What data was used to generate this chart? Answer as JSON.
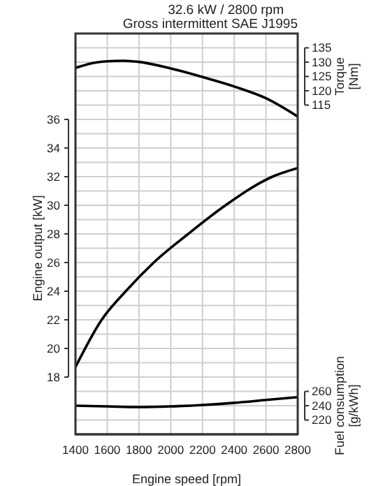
{
  "chart_data": {
    "type": "line",
    "title": "32.6 kW / 2800 rpm",
    "subtitle": "Gross intermittent SAE J1995",
    "xlabel": "Engine speed [rpm]",
    "ylabel": "Engine output [kW]",
    "y2label": "Torque [Nm]",
    "y3label": "Fuel consumption [g/kWh]",
    "series": [
      {
        "color": "#000000",
        "axis": "y2",
        "x": [
          1400,
          1500,
          1600,
          1700,
          1800,
          2000,
          2200,
          2400,
          2600,
          2800
        ],
        "values": [
          128,
          129.6,
          130.3,
          130.5,
          130.1,
          127.8,
          124.8,
          121.5,
          117.4,
          111
        ]
      },
      {
        "color": "#000000",
        "x": [
          1400,
          1565,
          1717,
          1893,
          2110,
          2345,
          2641,
          2800
        ],
        "values": [
          18.7,
          22,
          24,
          26,
          28,
          30,
          32,
          32.6
        ]
      },
      {
        "color": "#000000",
        "axis": "y3",
        "x": [
          1400,
          1600,
          1800,
          2000,
          2200,
          2400,
          2600,
          2800
        ],
        "values": [
          240,
          239,
          238,
          239,
          241,
          244,
          248,
          252
        ]
      }
    ],
    "xlim": [
      1400,
      2800
    ],
    "xticks": [
      1400,
      1600,
      1800,
      2000,
      2200,
      2400,
      2600,
      2800
    ],
    "ylim": [
      14,
      42
    ],
    "yticks": [
      {
        "value": 14,
        "label": null
      },
      {
        "value": 15,
        "label": null
      },
      {
        "value": 16,
        "label": null
      },
      {
        "value": 17,
        "label": null
      },
      18,
      {
        "value": 19,
        "label": null
      },
      20,
      {
        "value": 21,
        "label": null
      },
      22,
      {
        "value": 23,
        "label": null
      },
      24,
      {
        "value": 25,
        "label": null
      },
      26,
      {
        "value": 27,
        "label": null
      },
      28,
      {
        "value": 29,
        "label": null
      },
      30,
      {
        "value": 31,
        "label": null
      },
      32,
      {
        "value": 33,
        "label": null
      },
      34,
      {
        "value": 35,
        "label": null
      },
      36,
      {
        "value": 37,
        "label": null
      },
      {
        "value": 38,
        "label": null
      },
      {
        "value": 39,
        "label": null
      },
      {
        "value": 40,
        "label": null
      },
      {
        "value": 41,
        "label": null
      },
      {
        "value": 42,
        "label": null
      }
    ],
    "y2lim": [
      0,
      140
    ],
    "y2ticks": [
      115,
      120,
      125,
      130,
      135
    ],
    "y3lim": [
      200,
      760
    ],
    "y3ticks": [
      220,
      240,
      260
    ],
    "grid": true,
    "legend": false,
    "marker": "none",
    "line_style": "solid"
  }
}
